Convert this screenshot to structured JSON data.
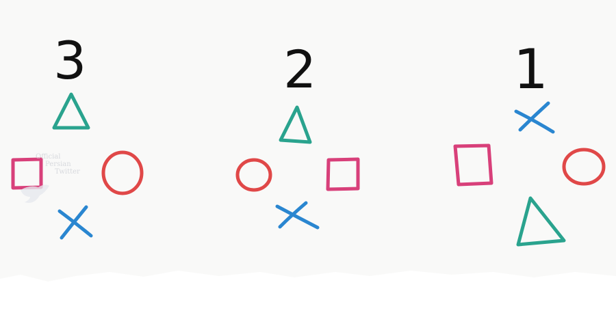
{
  "colors": {
    "background": "#f9f9f8",
    "triangle": "#2aa38e",
    "circle": "#e04848",
    "square": "#d8407a",
    "cross": "#2a86d0",
    "number": "#111111"
  },
  "groups": [
    {
      "number": "3",
      "shapes": [
        "triangle",
        "square",
        "circle",
        "cross"
      ]
    },
    {
      "number": "2",
      "shapes": [
        "triangle",
        "circle",
        "square",
        "cross"
      ]
    },
    {
      "number": "1",
      "shapes": [
        "cross",
        "square",
        "circle",
        "triangle"
      ]
    }
  ],
  "watermark": {
    "line1": "Official",
    "line2": "Persian",
    "line3": "Twitter"
  }
}
